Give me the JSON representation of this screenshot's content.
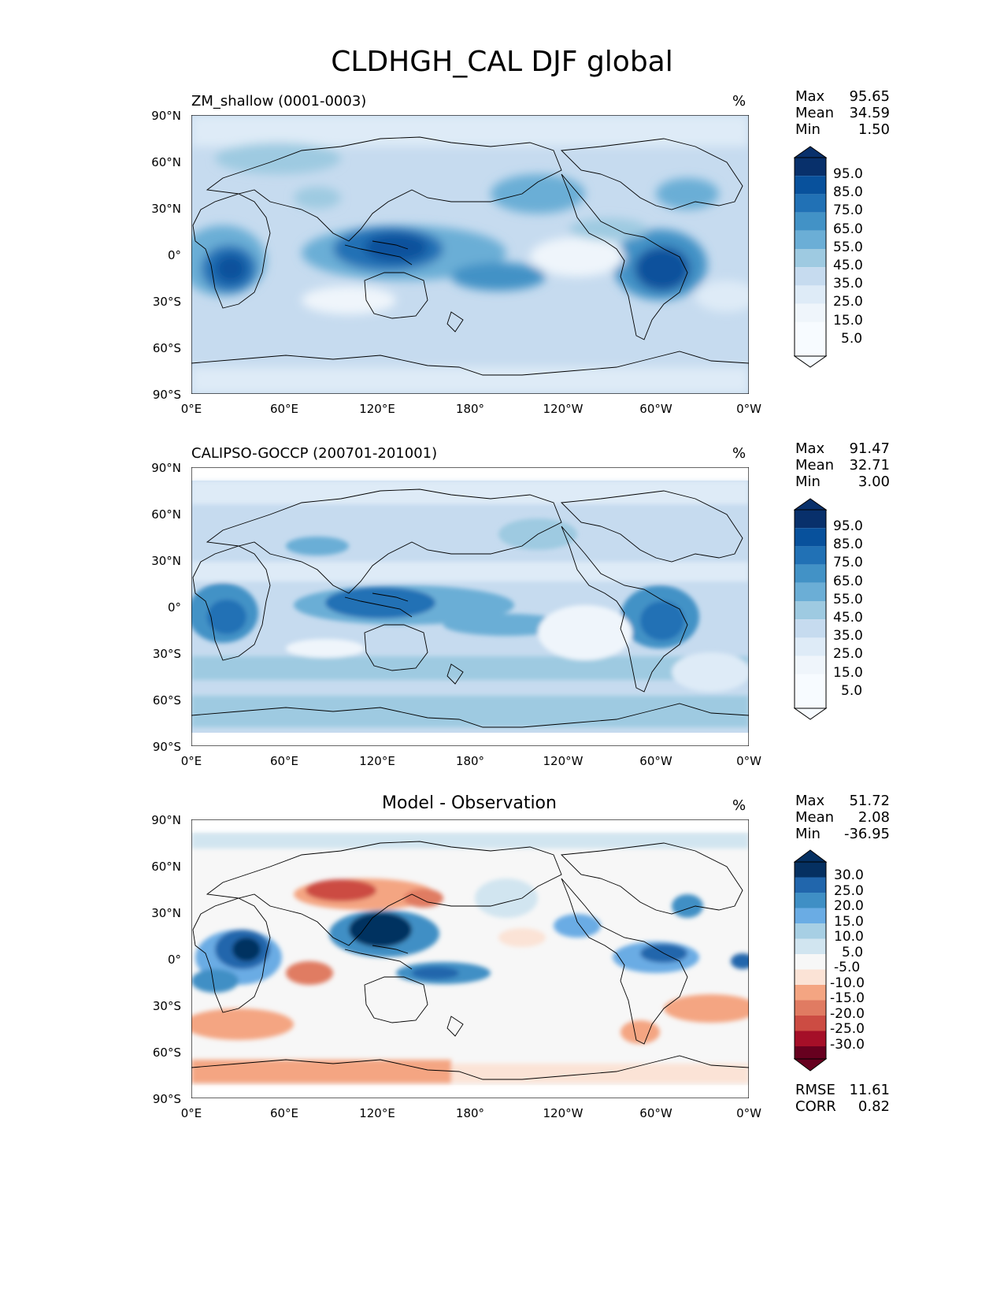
{
  "figure": {
    "title": "CLDHGH_CAL DJF global",
    "lat_ticks": [
      "90°N",
      "60°N",
      "30°N",
      "0°",
      "30°S",
      "60°S",
      "90°S"
    ],
    "lon_ticks": [
      "0°E",
      "60°E",
      "120°E",
      "180°",
      "120°W",
      "60°W",
      "0°W"
    ]
  },
  "panels": [
    {
      "title": "ZM_shallow (0001-0003)",
      "unit": "%",
      "stats": [
        {
          "label": "Max",
          "value": "95.65"
        },
        {
          "label": "Mean",
          "value": "34.59"
        },
        {
          "label": "Min",
          "value": "1.50"
        }
      ],
      "colorbar": {
        "labels": [
          "95.0",
          "85.0",
          "75.0",
          "65.0",
          "55.0",
          "45.0",
          "35.0",
          "25.0",
          "15.0",
          "5.0"
        ],
        "colors": [
          "#08306b",
          "#08519c",
          "#2171b5",
          "#4292c6",
          "#6baed6",
          "#9ecae1",
          "#c6dbef",
          "#deebf7",
          "#eff5fb",
          "#f7fbff"
        ]
      }
    },
    {
      "title": "CALIPSO-GOCCP (200701-201001)",
      "unit": "%",
      "stats": [
        {
          "label": "Max",
          "value": "91.47"
        },
        {
          "label": "Mean",
          "value": "32.71"
        },
        {
          "label": "Min",
          "value": "3.00"
        }
      ],
      "colorbar": {
        "labels": [
          "95.0",
          "85.0",
          "75.0",
          "65.0",
          "55.0",
          "45.0",
          "35.0",
          "25.0",
          "15.0",
          "5.0"
        ],
        "colors": [
          "#08306b",
          "#08519c",
          "#2171b5",
          "#4292c6",
          "#6baed6",
          "#9ecae1",
          "#c6dbef",
          "#deebf7",
          "#eff5fb",
          "#f7fbff"
        ]
      }
    },
    {
      "title": "Model - Observation",
      "unit": "%",
      "stats": [
        {
          "label": "Max",
          "value": "51.72"
        },
        {
          "label": "Mean",
          "value": "2.08"
        },
        {
          "label": "Min",
          "value": "-36.95"
        }
      ],
      "extra_stats": [
        {
          "label": "RMSE",
          "value": "11.61"
        },
        {
          "label": "CORR",
          "value": "0.82"
        }
      ],
      "colorbar": {
        "labels": [
          "30.0",
          "25.0",
          "20.0",
          "15.0",
          "10.0",
          "5.0",
          "-5.0",
          "-10.0",
          "-15.0",
          "-20.0",
          "-25.0",
          "-30.0"
        ],
        "colors": [
          "#053061",
          "#2166ac",
          "#3f8fc5",
          "#6aace4",
          "#a7cfe4",
          "#d1e5f0",
          "#f7f7f7",
          "#fbe3d6",
          "#f4a582",
          "#e07b62",
          "#cc4c43",
          "#a50f28",
          "#67001f"
        ]
      }
    }
  ]
}
